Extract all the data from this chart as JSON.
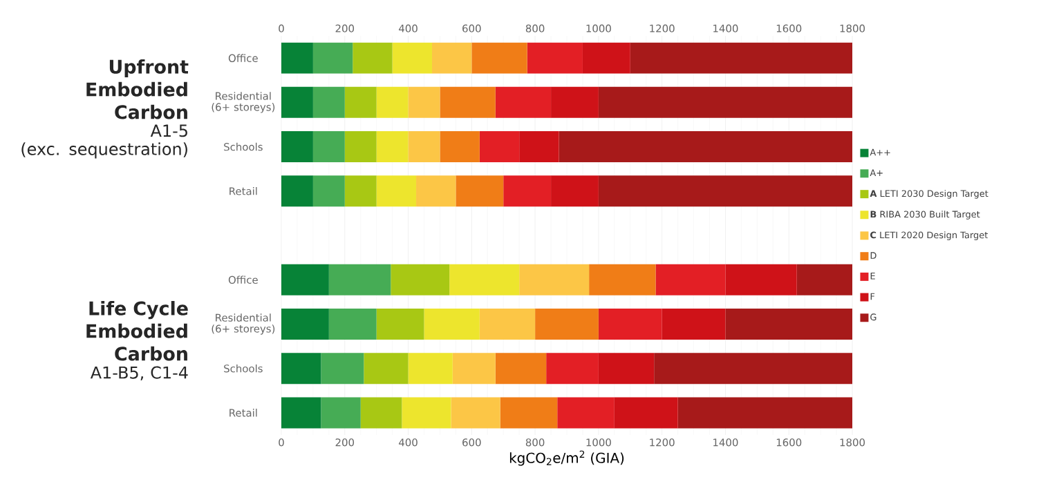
{
  "chart_data": {
    "type": "bar",
    "orientation": "horizontal",
    "stacked": true,
    "categories": [
      "Office",
      "Residential (6+ storeys)",
      "Schools",
      "Retail",
      null,
      "Office",
      "Residential (6+ storeys)",
      "Schools",
      "Retail"
    ],
    "series": [
      {
        "name": "A++",
        "color": "#078337",
        "values": [
          100,
          100,
          100,
          100,
          null,
          150,
          150,
          125,
          125
        ]
      },
      {
        "name": "A+",
        "color": "#46ac55",
        "values": [
          125,
          100,
          100,
          100,
          null,
          195,
          150,
          135,
          125
        ]
      },
      {
        "name": "**A** LETI 2030 Design Target",
        "color": "#a8c814",
        "values": [
          125,
          100,
          100,
          100,
          null,
          185,
          150,
          140,
          130
        ]
      },
      {
        "name": "**B** RIBA 2030 Built Target",
        "color": "#ede52d",
        "values": [
          125,
          100,
          100,
          125,
          null,
          220,
          175,
          140,
          155
        ]
      },
      {
        "name": "**C** LETI 2020 Design Target",
        "color": "#fcc646",
        "values": [
          125,
          100,
          100,
          125,
          null,
          220,
          175,
          135,
          155
        ]
      },
      {
        "name": "D",
        "color": "#f07d17",
        "values": [
          175,
          175,
          125,
          150,
          null,
          210,
          200,
          160,
          180
        ]
      },
      {
        "name": "E",
        "color": "#e31f25",
        "values": [
          175,
          175,
          125,
          150,
          null,
          220,
          200,
          165,
          180
        ]
      },
      {
        "name": "F",
        "color": "#cf1218",
        "values": [
          150,
          150,
          125,
          150,
          null,
          225,
          200,
          175,
          200
        ]
      },
      {
        "name": "G",
        "color": "#a71a1a",
        "values": [
          700,
          800,
          925,
          800,
          null,
          175,
          400,
          625,
          550
        ]
      }
    ],
    "xlabel": "kgCO$_{2}$e/m$^{2}$ (GIA)",
    "xlim": [
      0,
      1800
    ],
    "xticks": [
      0,
      200,
      400,
      600,
      800,
      1000,
      1200,
      1400,
      1600,
      1800
    ],
    "x2lim": [
      0,
      1800
    ],
    "x2ticks": [
      0,
      200,
      400,
      600,
      800,
      1000,
      1200,
      1400,
      1600,
      1800
    ],
    "grid": "x",
    "legend": "right",
    "annotations": [
      "Upfront Embodied Carbon",
      "A1-5",
      "(exc. sequestration)",
      "Life Cycle Embodied Carbon",
      "A1-B5, C1-4"
    ]
  }
}
